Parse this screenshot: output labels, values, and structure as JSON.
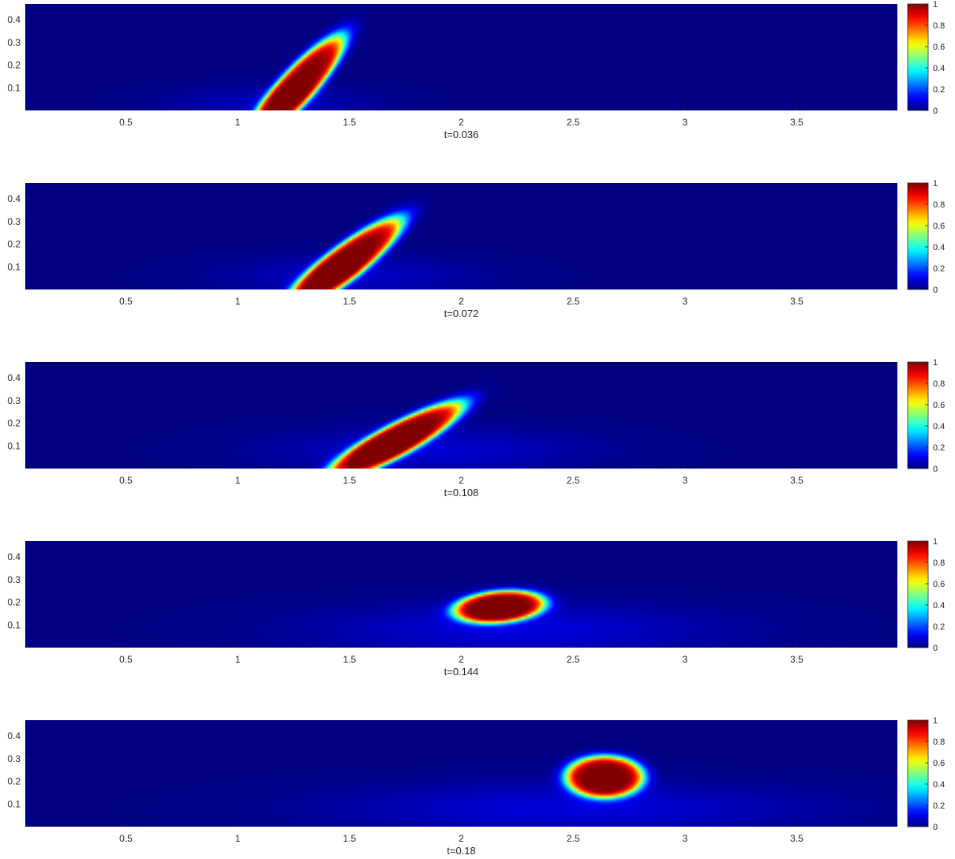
{
  "chart_data": [
    {
      "type": "heatmap",
      "xlabel": "t=0.036",
      "xlim": [
        0.05,
        3.95
      ],
      "ylim": [
        0,
        0.47
      ],
      "xticks": [
        0.5,
        1,
        1.5,
        2,
        2.5,
        3,
        3.5
      ],
      "yticks": [
        0.1,
        0.2,
        0.3,
        0.4
      ],
      "colorbar": {
        "ticks": [
          0,
          0.2,
          0.4,
          0.6,
          0.8,
          1
        ],
        "range": [
          0,
          1
        ],
        "colormap": "jet"
      },
      "field": {
        "blob": {
          "cx": 1.26,
          "cy": 0.1,
          "angle_deg": 47,
          "a": 0.3,
          "b": 0.075,
          "peak": 1.0
        },
        "wake": {
          "cx": 1.15,
          "cy": 0.04,
          "sx": 0.32,
          "sy": 0.05,
          "level": 0.06
        }
      }
    },
    {
      "type": "heatmap",
      "xlabel": "t=0.072",
      "xlim": [
        0.05,
        3.95
      ],
      "ylim": [
        0,
        0.47
      ],
      "xticks": [
        0.5,
        1,
        1.5,
        2,
        2.5,
        3,
        3.5
      ],
      "yticks": [
        0.1,
        0.2,
        0.3,
        0.4
      ],
      "colorbar": {
        "ticks": [
          0,
          0.2,
          0.4,
          0.6,
          0.8,
          1
        ],
        "range": [
          0,
          1
        ],
        "colormap": "jet"
      },
      "field": {
        "blob": {
          "cx": 1.47,
          "cy": 0.11,
          "angle_deg": 37,
          "a": 0.32,
          "b": 0.075,
          "peak": 1.0
        },
        "wake": {
          "cx": 1.5,
          "cy": 0.06,
          "sx": 0.4,
          "sy": 0.06,
          "level": 0.07
        }
      }
    },
    {
      "type": "heatmap",
      "xlabel": "t=0.108",
      "xlim": [
        0.05,
        3.95
      ],
      "ylim": [
        0,
        0.47
      ],
      "xticks": [
        0.5,
        1,
        1.5,
        2,
        2.5,
        3,
        3.5
      ],
      "yticks": [
        0.1,
        0.2,
        0.3,
        0.4
      ],
      "colorbar": {
        "ticks": [
          0,
          0.2,
          0.4,
          0.6,
          0.8,
          1
        ],
        "range": [
          0,
          1
        ],
        "colormap": "jet"
      },
      "field": {
        "blob": {
          "cx": 1.7,
          "cy": 0.12,
          "angle_deg": 28,
          "a": 0.34,
          "b": 0.07,
          "peak": 1.0
        },
        "wake": {
          "cx": 1.85,
          "cy": 0.08,
          "sx": 0.5,
          "sy": 0.07,
          "level": 0.08
        }
      }
    },
    {
      "type": "heatmap",
      "xlabel": "t=0.144",
      "xlim": [
        0.05,
        3.95
      ],
      "ylim": [
        0,
        0.47
      ],
      "xticks": [
        0.5,
        1,
        1.5,
        2,
        2.5,
        3,
        3.5
      ],
      "yticks": [
        0.1,
        0.2,
        0.3,
        0.4
      ],
      "colorbar": {
        "ticks": [
          0,
          0.2,
          0.4,
          0.6,
          0.8,
          1
        ],
        "range": [
          0,
          1
        ],
        "colormap": "jet"
      },
      "field": {
        "blob": {
          "cx": 2.17,
          "cy": 0.18,
          "angle_deg": 5,
          "a": 0.2,
          "b": 0.068,
          "peak": 1.0
        },
        "wake": {
          "cx": 2.25,
          "cy": 0.08,
          "sx": 0.65,
          "sy": 0.08,
          "level": 0.09
        }
      }
    },
    {
      "type": "heatmap",
      "xlabel": "t=0.18",
      "xlim": [
        0.05,
        3.95
      ],
      "ylim": [
        0,
        0.47
      ],
      "xticks": [
        0.5,
        1,
        1.5,
        2,
        2.5,
        3,
        3.5
      ],
      "yticks": [
        0.1,
        0.2,
        0.3,
        0.4
      ],
      "colorbar": {
        "ticks": [
          0,
          0.2,
          0.4,
          0.6,
          0.8,
          1
        ],
        "range": [
          0,
          1
        ],
        "colormap": "jet"
      },
      "field": {
        "blob": {
          "cx": 2.64,
          "cy": 0.22,
          "angle_deg": 0,
          "a": 0.17,
          "b": 0.09,
          "peak": 1.0
        },
        "wake": {
          "cx": 2.5,
          "cy": 0.08,
          "sx": 0.75,
          "sy": 0.08,
          "level": 0.09
        }
      }
    }
  ]
}
